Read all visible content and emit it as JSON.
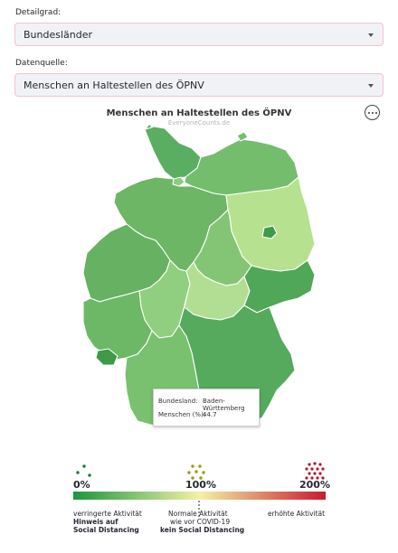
{
  "controls": {
    "detail_label": "Detailgrad:",
    "detail_value": "Bundesländer",
    "source_label": "Datenquelle:",
    "source_value": "Menschen an Haltestellen des ÖPNV"
  },
  "map": {
    "title": "Menschen an Haltestellen des ÖPNV",
    "credit": "EveryoneCounts.de",
    "tooltip": {
      "key_region": "Bundesland:",
      "value_region": "Baden-Württemberg",
      "key_people": "Menschen (%):",
      "value_people": "44.7"
    }
  },
  "legend": {
    "min_label": "0%",
    "mid_label": "100%",
    "max_label": "200%",
    "reduced": "verringerte Aktivität",
    "reduced_hint_line1": "Hinweis auf",
    "reduced_hint_line2": "Social Distancing",
    "normal_line1": "Normale Aktivität",
    "normal_line2": "wie vor COVID-19",
    "normal_hint": "kein Social Distancing",
    "increased": "erhöhte Aktivität",
    "colors": {
      "low": "#1a9641",
      "mid": "#f4f1a6",
      "high": "#c81b30"
    }
  }
}
